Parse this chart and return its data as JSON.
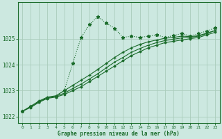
{
  "title": "Graphe pression niveau de la mer (hPa)",
  "bg_color": "#cce8e0",
  "grid_color": "#aaccbb",
  "line_color": "#1a6b2a",
  "text_color": "#1a6b2a",
  "xlim": [
    -0.5,
    23.5
  ],
  "ylim": [
    1021.75,
    1026.4
  ],
  "yticks": [
    1022,
    1023,
    1024,
    1025
  ],
  "xticks": [
    0,
    1,
    2,
    3,
    4,
    5,
    6,
    7,
    8,
    9,
    10,
    11,
    12,
    13,
    14,
    15,
    16,
    17,
    18,
    19,
    20,
    21,
    22,
    23
  ],
  "series": [
    {
      "x": [
        0,
        1,
        2,
        3,
        4,
        5,
        6,
        7,
        8,
        9,
        10,
        11,
        12,
        13,
        14,
        15,
        16,
        17,
        18,
        19,
        20,
        21,
        22,
        23
      ],
      "y": [
        1022.2,
        1022.35,
        1022.55,
        1022.7,
        1022.75,
        1022.85,
        1023.0,
        1023.15,
        1023.35,
        1023.55,
        1023.75,
        1023.95,
        1024.15,
        1024.35,
        1024.5,
        1024.65,
        1024.75,
        1024.85,
        1024.9,
        1024.95,
        1025.0,
        1025.05,
        1025.15,
        1025.25
      ],
      "marker": "D",
      "markersize": 1.5,
      "linewidth": 0.8,
      "linestyle": "-"
    },
    {
      "x": [
        0,
        1,
        2,
        3,
        4,
        5,
        6,
        7,
        8,
        9,
        10,
        11,
        12,
        13,
        14,
        15,
        16,
        17,
        18,
        19,
        20,
        21,
        22,
        23
      ],
      "y": [
        1022.2,
        1022.38,
        1022.58,
        1022.72,
        1022.78,
        1022.9,
        1023.08,
        1023.25,
        1023.45,
        1023.65,
        1023.88,
        1024.1,
        1024.28,
        1024.48,
        1024.62,
        1024.75,
        1024.85,
        1024.93,
        1024.98,
        1025.03,
        1025.05,
        1025.1,
        1025.2,
        1025.32
      ],
      "marker": ".",
      "markersize": 2.0,
      "linewidth": 0.8,
      "linestyle": "-"
    },
    {
      "x": [
        0,
        1,
        2,
        3,
        4,
        5,
        6,
        7,
        8,
        9,
        10,
        11,
        12,
        13,
        14,
        15,
        16,
        17,
        18,
        19,
        20,
        21,
        22,
        23
      ],
      "y": [
        1022.2,
        1022.4,
        1022.6,
        1022.75,
        1022.8,
        1023.0,
        1023.2,
        1023.4,
        1023.6,
        1023.82,
        1024.05,
        1024.28,
        1024.48,
        1024.65,
        1024.78,
        1024.88,
        1024.95,
        1025.02,
        1025.05,
        1025.1,
        1025.08,
        1025.12,
        1025.22,
        1025.32
      ],
      "marker": "+",
      "markersize": 3.0,
      "linewidth": 0.8,
      "linestyle": "-"
    },
    {
      "x": [
        0,
        1,
        2,
        3,
        4,
        5,
        6,
        7,
        8,
        9,
        10,
        11,
        12,
        13,
        14,
        15,
        16,
        17,
        18,
        19,
        20,
        21,
        22,
        23
      ],
      "y": [
        1022.2,
        1022.38,
        1022.58,
        1022.72,
        1022.78,
        1023.0,
        1024.05,
        1025.05,
        1025.55,
        1025.85,
        1025.6,
        1025.4,
        1025.05,
        1025.1,
        1025.05,
        1025.1,
        1025.15,
        1025.05,
        1025.12,
        1025.2,
        1025.1,
        1025.2,
        1025.3,
        1025.42
      ],
      "marker": "*",
      "markersize": 3.5,
      "linewidth": 0.8,
      "linestyle": ":"
    }
  ]
}
